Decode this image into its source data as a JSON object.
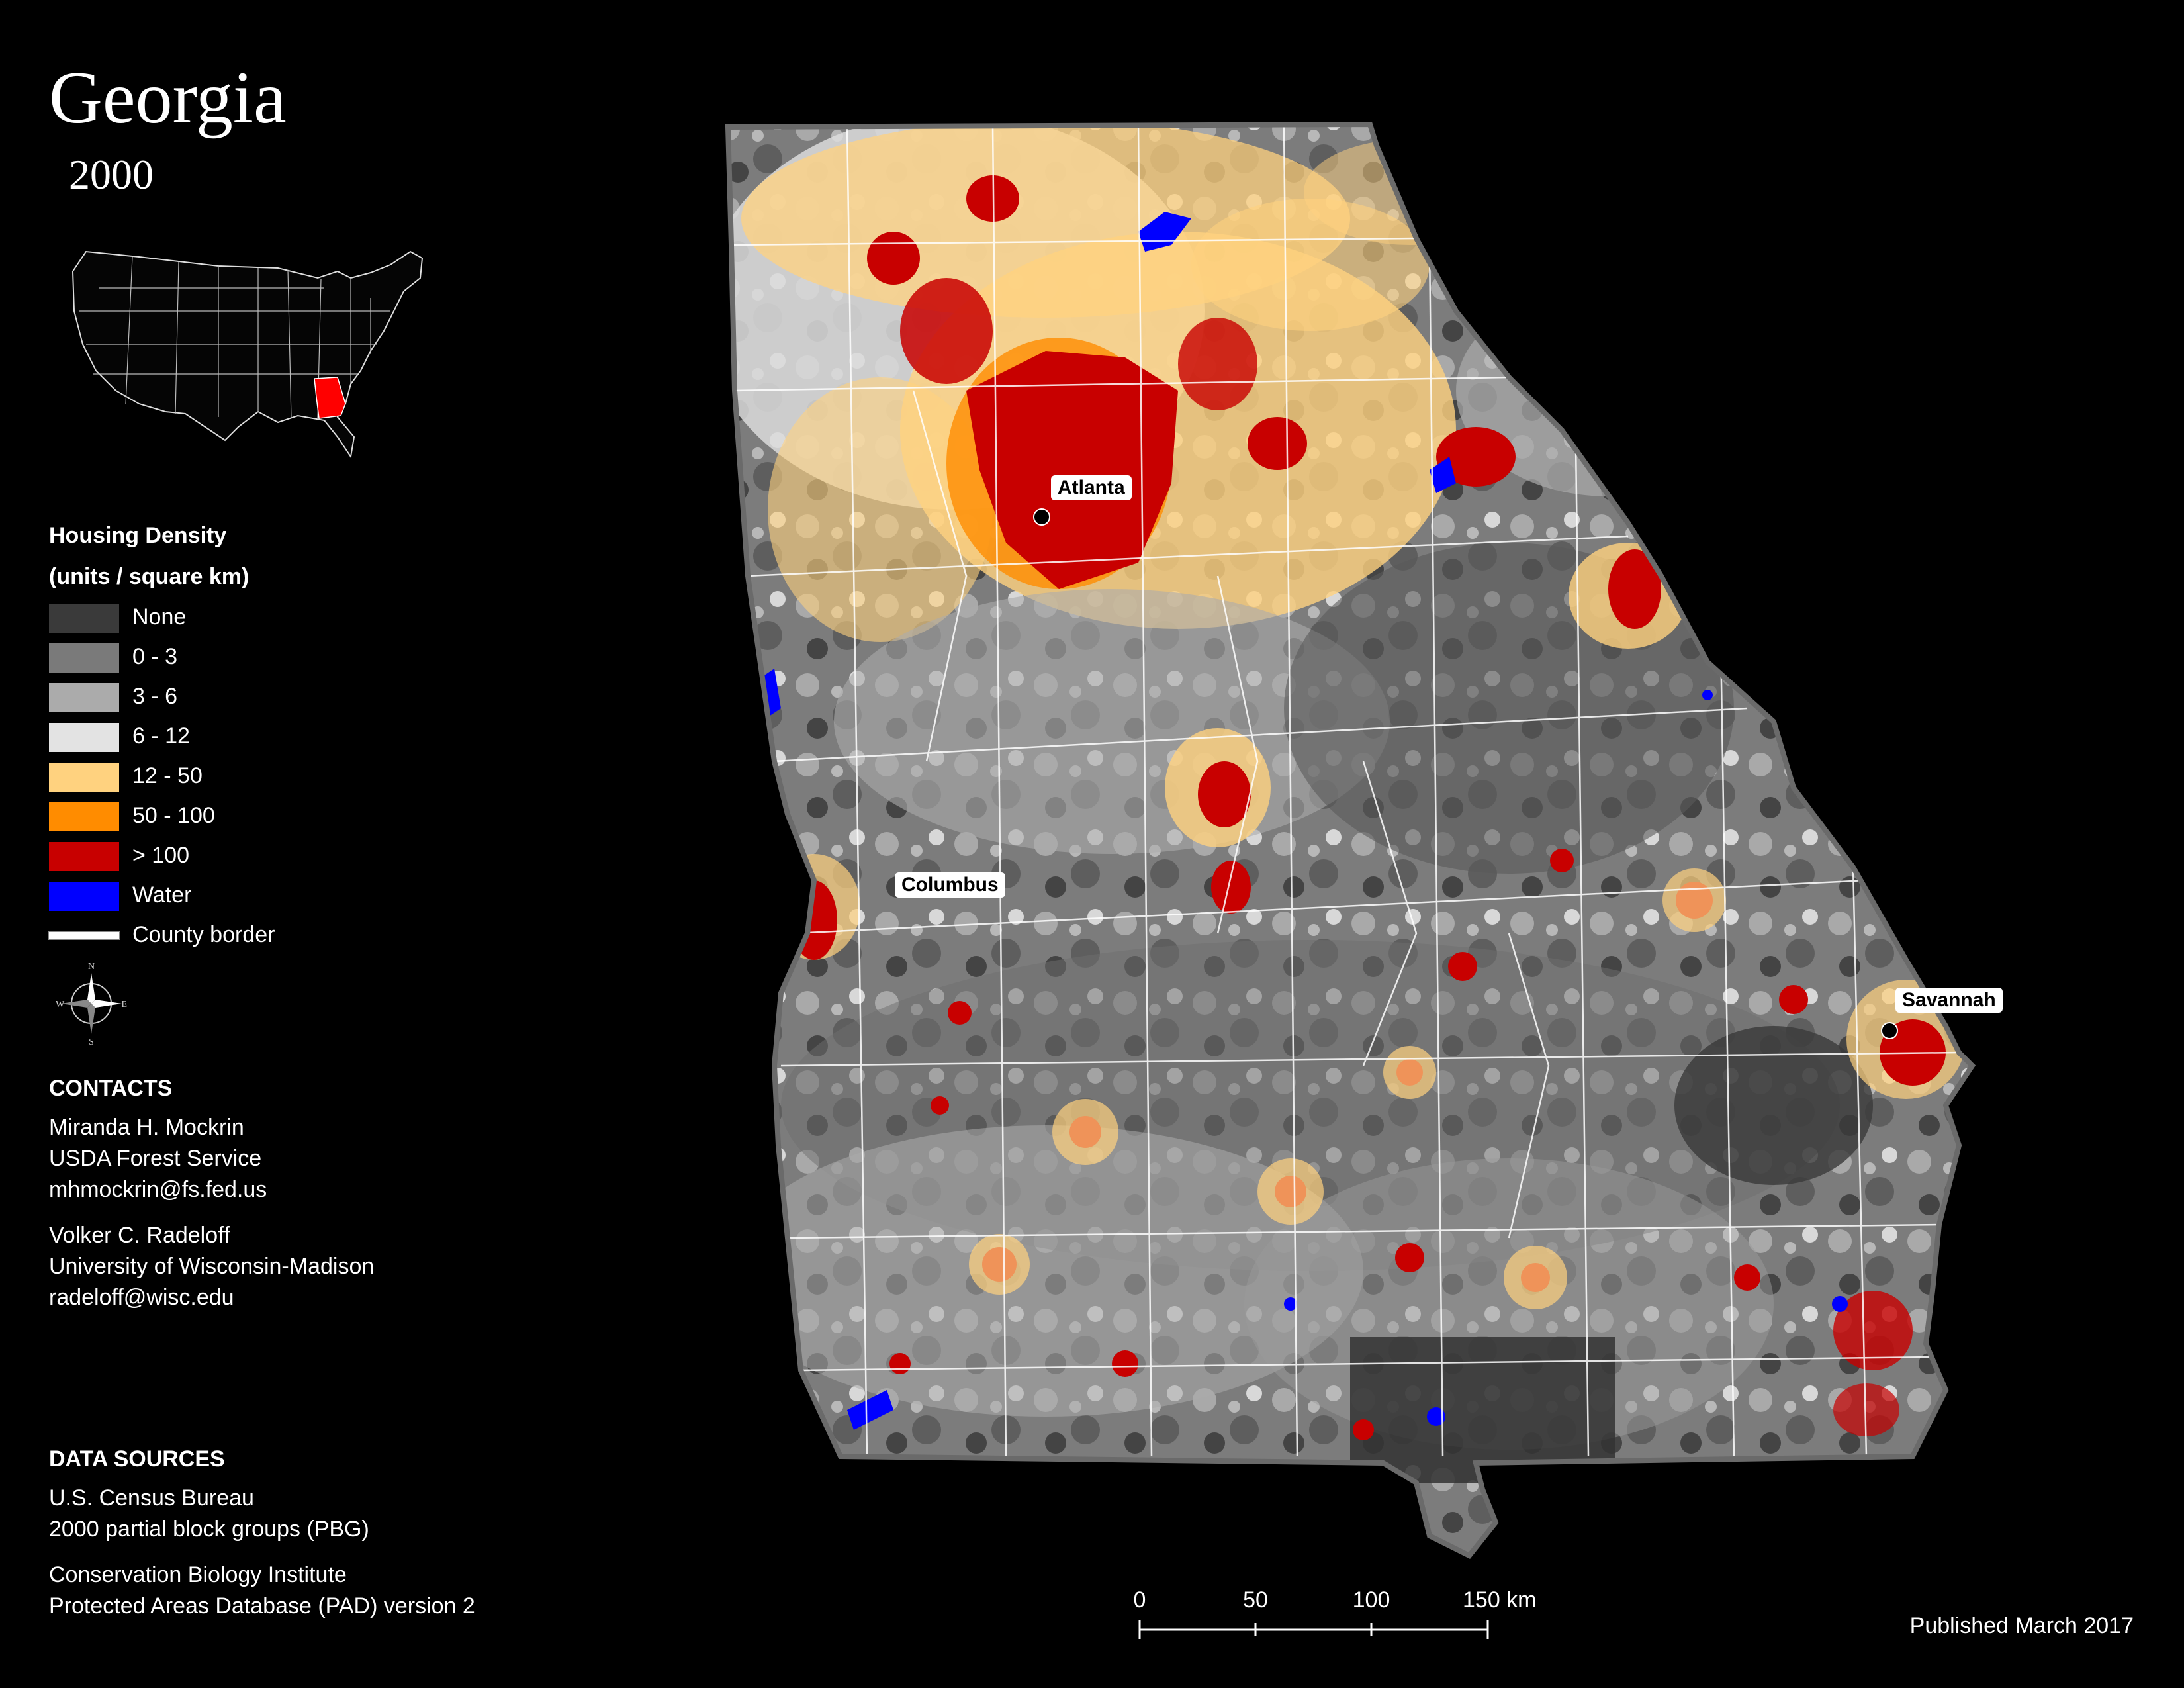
{
  "title": "Georgia",
  "year": "2000",
  "legend": {
    "title_line1": "Housing Density",
    "title_line2": "(units / square km)",
    "classes": [
      {
        "label": "None",
        "color": "#3a3a3a"
      },
      {
        "label": "0 - 3",
        "color": "#7a7a7a"
      },
      {
        "label": "3 - 6",
        "color": "#ababab"
      },
      {
        "label": "6 - 12",
        "color": "#e3e3e3"
      },
      {
        "label": "12 - 50",
        "color": "#ffd27f"
      },
      {
        "label": "50 - 100",
        "color": "#ff8c00"
      },
      {
        "label": "> 100",
        "color": "#c80000"
      },
      {
        "label": "Water",
        "color": "#0000ff"
      }
    ],
    "border_label": "County border"
  },
  "compass": {
    "n": "N",
    "s": "S",
    "e": "E",
    "w": "W"
  },
  "contacts": {
    "heading": "CONTACTS",
    "people": [
      {
        "name": "Miranda H. Mockrin",
        "org": "USDA Forest Service",
        "email": "mhmockrin@fs.fed.us"
      },
      {
        "name": "Volker C. Radeloff",
        "org": "University of Wisconsin-Madison",
        "email": "radeloff@wisc.edu"
      }
    ]
  },
  "data_sources": {
    "heading": "DATA SOURCES",
    "lines": [
      "U.S. Census Bureau",
      "2000 partial block groups (PBG)",
      "Conservation Biology Institute",
      "Protected Areas Database (PAD) version 2"
    ]
  },
  "cities": [
    {
      "name": "Atlanta"
    },
    {
      "name": "Columbus"
    },
    {
      "name": "Savannah"
    }
  ],
  "scale": {
    "ticks": [
      "0",
      "50",
      "100",
      "150 km"
    ]
  },
  "published": "Published March 2017",
  "inset_highlight_color": "#ff0000"
}
